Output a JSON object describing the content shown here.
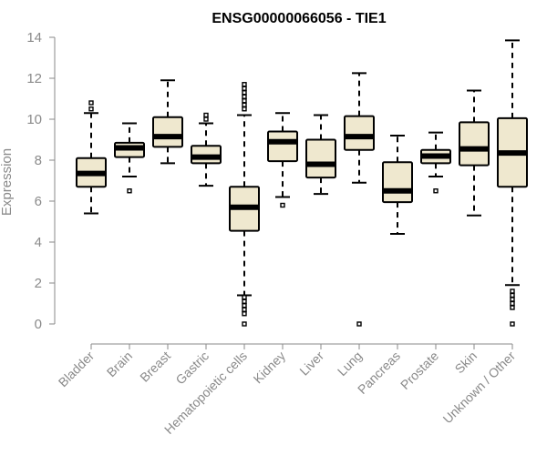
{
  "chart_data": {
    "type": "boxplot",
    "title": "ENSG00000066056 - TIE1",
    "xlabel": "",
    "ylabel": "Expression",
    "ylim": [
      0,
      14
    ],
    "yticks": [
      0,
      2,
      4,
      6,
      8,
      10,
      12,
      14
    ],
    "grid": false,
    "legend": "none",
    "colors": {
      "box_fill": "#efe8cf",
      "box_stroke": "#000000",
      "axis": "#8a8a8a",
      "text": "#8a8a8a",
      "title": "#000000"
    },
    "categories": [
      "Bladder",
      "Brain",
      "Breast",
      "Gastric",
      "Hematopoietic cells",
      "Kidney",
      "Liver",
      "Lung",
      "Pancreas",
      "Prostate",
      "Skin",
      "Unknown / Other"
    ],
    "boxes": [
      {
        "min": 5.4,
        "q1": 6.7,
        "median": 7.35,
        "q3": 8.1,
        "max": 10.3,
        "outliers": [
          10.8,
          10.5
        ]
      },
      {
        "min": 7.2,
        "q1": 8.15,
        "median": 8.6,
        "q3": 8.85,
        "max": 9.8,
        "outliers": [
          6.5
        ]
      },
      {
        "min": 7.85,
        "q1": 8.65,
        "median": 9.15,
        "q3": 10.1,
        "max": 11.9,
        "outliers": []
      },
      {
        "min": 6.75,
        "q1": 7.85,
        "median": 8.15,
        "q3": 8.7,
        "max": 9.8,
        "outliers": [
          10.2,
          10.0
        ]
      },
      {
        "min": 1.4,
        "q1": 4.55,
        "median": 5.7,
        "q3": 6.7,
        "max": 10.2,
        "outliers": [
          11.7,
          11.5,
          11.3,
          11.1,
          10.9,
          10.7,
          10.5,
          1.3,
          1.1,
          0.9,
          0.7,
          0.5,
          0.0
        ]
      },
      {
        "min": 6.2,
        "q1": 7.95,
        "median": 8.9,
        "q3": 9.4,
        "max": 10.3,
        "outliers": [
          5.8
        ]
      },
      {
        "min": 6.35,
        "q1": 7.15,
        "median": 7.8,
        "q3": 9.0,
        "max": 10.2,
        "outliers": []
      },
      {
        "min": 6.9,
        "q1": 8.5,
        "median": 9.15,
        "q3": 10.15,
        "max": 12.25,
        "outliers": [
          0.0
        ]
      },
      {
        "min": 4.4,
        "q1": 5.95,
        "median": 6.5,
        "q3": 7.9,
        "max": 9.2,
        "outliers": []
      },
      {
        "min": 7.2,
        "q1": 7.85,
        "median": 8.2,
        "q3": 8.5,
        "max": 9.35,
        "outliers": [
          6.5
        ]
      },
      {
        "min": 5.3,
        "q1": 7.75,
        "median": 8.55,
        "q3": 9.85,
        "max": 11.4,
        "outliers": []
      },
      {
        "min": 1.9,
        "q1": 6.7,
        "median": 8.35,
        "q3": 10.05,
        "max": 13.85,
        "outliers": [
          1.6,
          1.4,
          1.2,
          1.0,
          0.8,
          0.0
        ]
      }
    ]
  }
}
